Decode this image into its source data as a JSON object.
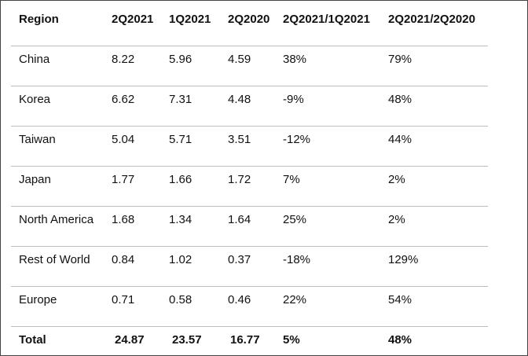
{
  "table": {
    "header": [
      "Region",
      "2Q2021",
      "1Q2021",
      "2Q2020",
      "2Q2021/1Q2021",
      "2Q2021/2Q2020"
    ],
    "rows": [
      [
        "China",
        "8.22",
        "5.96",
        "4.59",
        "38%",
        "79%"
      ],
      [
        "Korea",
        "6.62",
        "7.31",
        "4.48",
        "-9%",
        "48%"
      ],
      [
        "Taiwan",
        "5.04",
        "5.71",
        "3.51",
        "-12%",
        "44%"
      ],
      [
        "Japan",
        "1.77",
        "1.66",
        "1.72",
        "7%",
        "2%"
      ],
      [
        "North America",
        "1.68",
        "1.34",
        "1.64",
        "25%",
        "2%"
      ],
      [
        "Rest of World",
        "0.84",
        "1.02",
        "0.37",
        "-18%",
        "129%"
      ],
      [
        "Europe",
        "0.71",
        "0.58",
        "0.46",
        "22%",
        "54%"
      ]
    ],
    "total": [
      "Total",
      "24.87",
      "23.57",
      "16.77",
      "5%",
      "48%"
    ]
  }
}
